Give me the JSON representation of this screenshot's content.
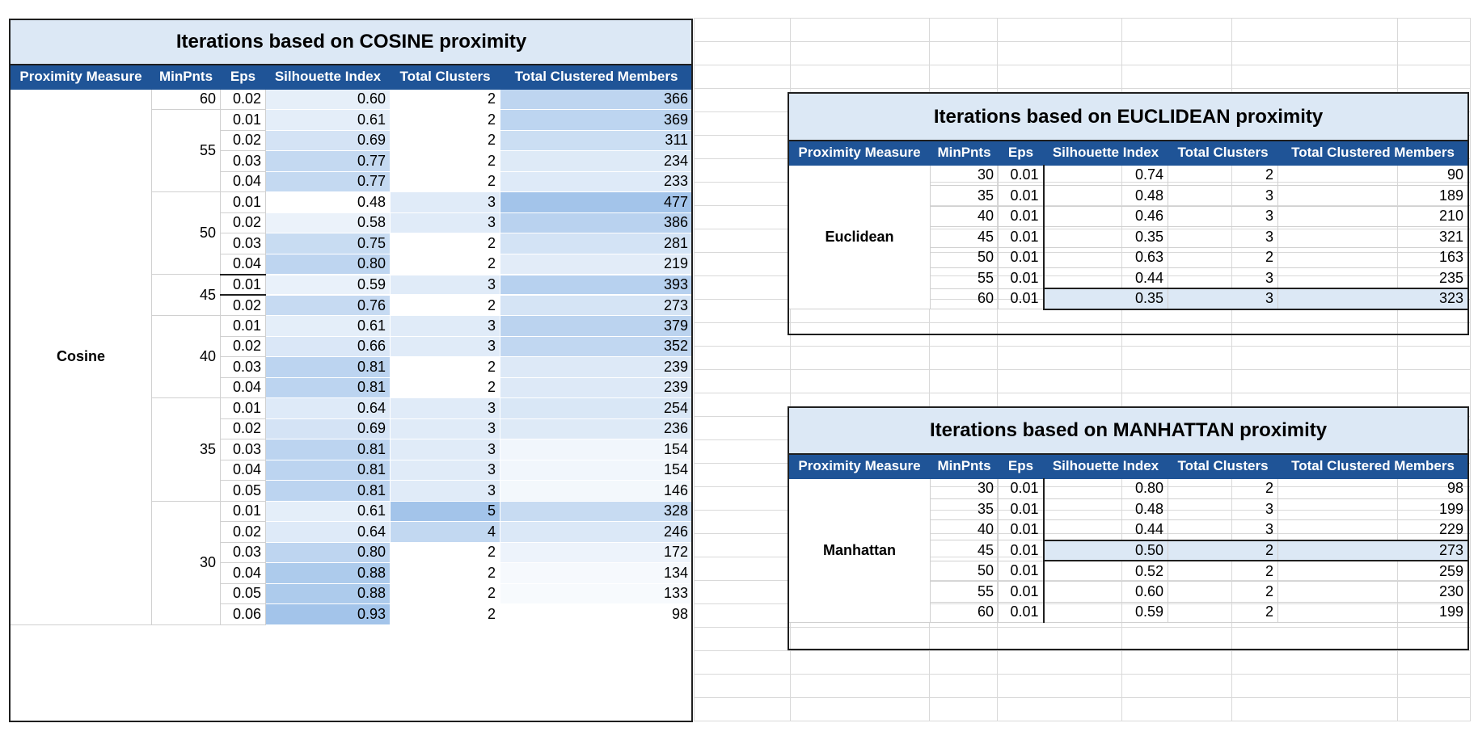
{
  "headers": [
    "Proximity Measure",
    "MinPnts",
    "Eps",
    "Silhouette Index",
    "Total Clusters",
    "Total Clustered Members"
  ],
  "cosine": {
    "title": "Iterations based on COSINE proximity",
    "measure": "Cosine",
    "groups": [
      {
        "minpnts": "60",
        "rows": [
          [
            "0.02",
            "0.60",
            "2",
            "366"
          ]
        ]
      },
      {
        "minpnts": "55",
        "rows": [
          [
            "0.01",
            "0.61",
            "2",
            "369"
          ],
          [
            "0.02",
            "0.69",
            "2",
            "311"
          ],
          [
            "0.03",
            "0.77",
            "2",
            "234"
          ],
          [
            "0.04",
            "0.77",
            "2",
            "233"
          ]
        ]
      },
      {
        "minpnts": "50",
        "rows": [
          [
            "0.01",
            "0.48",
            "3",
            "477"
          ],
          [
            "0.02",
            "0.58",
            "3",
            "386"
          ],
          [
            "0.03",
            "0.75",
            "2",
            "281"
          ],
          [
            "0.04",
            "0.80",
            "2",
            "219"
          ]
        ]
      },
      {
        "minpnts": "45",
        "rows": [
          [
            "0.01",
            "0.59",
            "3",
            "393"
          ],
          [
            "0.02",
            "0.76",
            "2",
            "273"
          ]
        ]
      },
      {
        "minpnts": "40",
        "rows": [
          [
            "0.01",
            "0.61",
            "3",
            "379"
          ],
          [
            "0.02",
            "0.66",
            "3",
            "352"
          ],
          [
            "0.03",
            "0.81",
            "2",
            "239"
          ],
          [
            "0.04",
            "0.81",
            "2",
            "239"
          ]
        ]
      },
      {
        "minpnts": "35",
        "rows": [
          [
            "0.01",
            "0.64",
            "3",
            "254"
          ],
          [
            "0.02",
            "0.69",
            "3",
            "236"
          ],
          [
            "0.03",
            "0.81",
            "3",
            "154"
          ],
          [
            "0.04",
            "0.81",
            "3",
            "154"
          ],
          [
            "0.05",
            "0.81",
            "3",
            "146"
          ]
        ]
      },
      {
        "minpnts": "30",
        "rows": [
          [
            "0.01",
            "0.61",
            "5",
            "328"
          ],
          [
            "0.02",
            "0.64",
            "4",
            "246"
          ],
          [
            "0.03",
            "0.80",
            "2",
            "172"
          ],
          [
            "0.04",
            "0.88",
            "2",
            "134"
          ],
          [
            "0.05",
            "0.88",
            "2",
            "133"
          ],
          [
            "0.06",
            "0.93",
            "2",
            "98"
          ]
        ]
      }
    ]
  },
  "euclidean": {
    "title": "Iterations based on EUCLIDEAN proximity",
    "measure": "Euclidean",
    "rows": [
      [
        "30",
        "0.01",
        "0.74",
        "2",
        "90"
      ],
      [
        "35",
        "0.01",
        "0.48",
        "3",
        "189"
      ],
      [
        "40",
        "0.01",
        "0.46",
        "3",
        "210"
      ],
      [
        "45",
        "0.01",
        "0.35",
        "3",
        "321"
      ],
      [
        "50",
        "0.01",
        "0.63",
        "2",
        "163"
      ],
      [
        "55",
        "0.01",
        "0.44",
        "3",
        "235"
      ],
      [
        "60",
        "0.01",
        "0.35",
        "3",
        "323"
      ]
    ]
  },
  "manhattan": {
    "title": "Iterations based on MANHATTAN proximity",
    "measure": "Manhattan",
    "rows": [
      [
        "30",
        "0.01",
        "0.80",
        "2",
        "98"
      ],
      [
        "35",
        "0.01",
        "0.48",
        "3",
        "199"
      ],
      [
        "40",
        "0.01",
        "0.44",
        "3",
        "229"
      ],
      [
        "45",
        "0.01",
        "0.50",
        "2",
        "273"
      ],
      [
        "50",
        "0.01",
        "0.52",
        "2",
        "259"
      ],
      [
        "55",
        "0.01",
        "0.60",
        "2",
        "230"
      ],
      [
        "60",
        "0.01",
        "0.59",
        "2",
        "199"
      ]
    ]
  },
  "colors": {
    "header_bg": "#1f5497",
    "title_bg": "#dce8f5",
    "heat_high": "#a9c8ec",
    "heat_low": "#ffffff",
    "highlight_row": "#dce8f5"
  }
}
